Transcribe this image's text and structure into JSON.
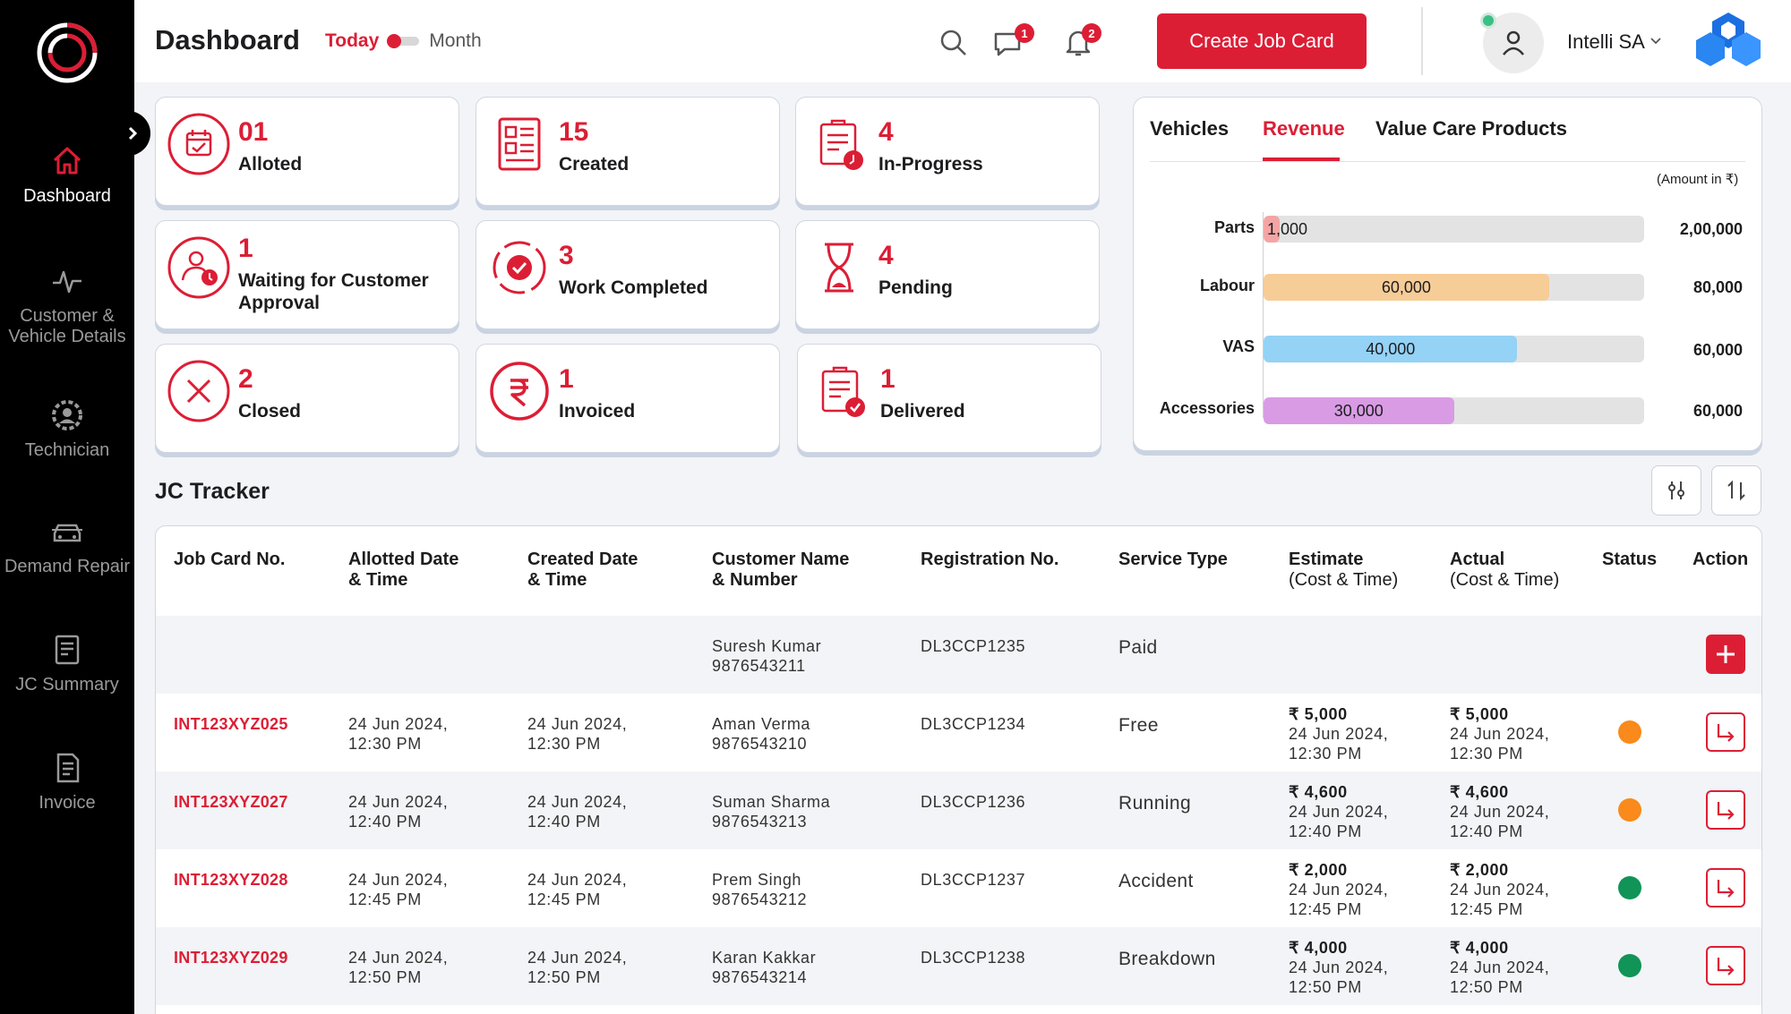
{
  "sidebar": {
    "items": [
      {
        "label": "Dashboard",
        "icon": "home-icon",
        "active": true
      },
      {
        "label": "Customer & Vehicle Details",
        "icon": "pulse-icon",
        "active": false
      },
      {
        "label": "Technician",
        "icon": "gear-person-icon",
        "active": false
      },
      {
        "label": "Demand Repair",
        "icon": "car-icon",
        "active": false
      },
      {
        "label": "JC Summary",
        "icon": "summary-icon",
        "active": false
      },
      {
        "label": "Invoice",
        "icon": "invoice-icon",
        "active": false
      }
    ]
  },
  "header": {
    "title": "Dashboard",
    "toggle_today": "Today",
    "toggle_month": "Month",
    "messages_badge": "1",
    "notifications_badge": "2",
    "create_button": "Create Job Card",
    "user_name": "Intelli SA"
  },
  "cards": [
    {
      "count": "01",
      "label": "Alloted",
      "icon": "calendar-check-icon"
    },
    {
      "count": "15",
      "label": "Created",
      "icon": "document-icon"
    },
    {
      "count": "4",
      "label": "In-Progress",
      "icon": "clipboard-clock-icon"
    },
    {
      "count": "1",
      "label": "Waiting for Customer Approval",
      "icon": "user-clock-icon"
    },
    {
      "count": "3",
      "label": "Work Completed",
      "icon": "gear-check-icon"
    },
    {
      "count": "4",
      "label": "Pending",
      "icon": "hourglass-icon"
    },
    {
      "count": "2",
      "label": "Closed",
      "icon": "close-circle-icon"
    },
    {
      "count": "1",
      "label": "Invoiced",
      "icon": "rupee-icon"
    },
    {
      "count": "1",
      "label": "Delivered",
      "icon": "clipboard-check-icon"
    }
  ],
  "revenue": {
    "tabs": [
      "Vehicles",
      "Revenue",
      "Value Care Products"
    ],
    "active_tab": "Revenue",
    "amount_note": "(Amount in ₹)",
    "rows": [
      {
        "label": "Parts",
        "value": "1,000",
        "max": "2,00,000",
        "fraction": 0.005,
        "color": "#f3a5a5"
      },
      {
        "label": "Labour",
        "value": "60,000",
        "max": "80,000",
        "fraction": 0.75,
        "color": "#f6cc97"
      },
      {
        "label": "VAS",
        "value": "40,000",
        "max": "60,000",
        "fraction": 0.667,
        "color": "#94d2f6"
      },
      {
        "label": "Accessories",
        "value": "30,000",
        "max": "60,000",
        "fraction": 0.5,
        "color": "#d99be4"
      }
    ]
  },
  "tracker": {
    "title": "JC Tracker",
    "columns": [
      {
        "main": "Job Card No.",
        "sub": ""
      },
      {
        "main": "Allotted Date",
        "sub": "& Time"
      },
      {
        "main": "Created Date",
        "sub": "& Time"
      },
      {
        "main": "Customer Name",
        "sub": "& Number"
      },
      {
        "main": "Registration No.",
        "sub": ""
      },
      {
        "main": "Service Type",
        "sub": ""
      },
      {
        "main": "Estimate",
        "sub": "(Cost & Time)"
      },
      {
        "main": "Actual",
        "sub": "(Cost & Time)"
      },
      {
        "main": "Status",
        "sub": ""
      },
      {
        "main": "Action",
        "sub": ""
      }
    ],
    "rows": [
      {
        "jc": "",
        "allot_date": "",
        "allot_time": "",
        "created_date": "",
        "created_time": "",
        "customer": "Suresh Kumar",
        "phone": "9876543211",
        "reg": "DL3CCP1235",
        "service": "Paid",
        "est_cost": "",
        "est_date": "",
        "est_time": "",
        "act_cost": "",
        "act_date": "",
        "act_time": "",
        "status": "",
        "status_color": "",
        "action": "add"
      },
      {
        "jc": "INT123XYZ025",
        "allot_date": "24 Jun 2024,",
        "allot_time": "12:30 PM",
        "created_date": "24 Jun 2024,",
        "created_time": "12:30 PM",
        "customer": "Aman Verma",
        "phone": "9876543210",
        "reg": "DL3CCP1234",
        "service": "Free",
        "est_cost": "₹ 5,000",
        "est_date": "24 Jun 2024,",
        "est_time": "12:30 PM",
        "act_cost": "₹ 5,000",
        "act_date": "24 Jun 2024,",
        "act_time": "12:30 PM",
        "status": "in-progress",
        "status_color": "#f98a1b",
        "action": "open"
      },
      {
        "jc": "INT123XYZ027",
        "allot_date": "24 Jun 2024,",
        "allot_time": "12:40 PM",
        "created_date": "24 Jun 2024,",
        "created_time": "12:40 PM",
        "customer": "Suman Sharma",
        "phone": "9876543213",
        "reg": "DL3CCP1236",
        "service": "Running",
        "est_cost": "₹ 4,600",
        "est_date": "24 Jun 2024,",
        "est_time": "12:40 PM",
        "act_cost": "₹ 4,600",
        "act_date": "24 Jun 2024,",
        "act_time": "12:40 PM",
        "status": "in-progress",
        "status_color": "#f98a1b",
        "action": "open"
      },
      {
        "jc": "INT123XYZ028",
        "allot_date": "24 Jun 2024,",
        "allot_time": "12:45 PM",
        "created_date": "24 Jun 2024,",
        "created_time": "12:45 PM",
        "customer": "Prem Singh",
        "phone": "9876543212",
        "reg": "DL3CCP1237",
        "service": "Accident",
        "est_cost": "₹ 2,000",
        "est_date": "24 Jun 2024,",
        "est_time": "12:45 PM",
        "act_cost": "₹ 2,000",
        "act_date": "24 Jun 2024,",
        "act_time": "12:45 PM",
        "status": "completed",
        "status_color": "#109458",
        "action": "open"
      },
      {
        "jc": "INT123XYZ029",
        "allot_date": "24 Jun 2024,",
        "allot_time": "12:50 PM",
        "created_date": "24 Jun 2024,",
        "created_time": "12:50 PM",
        "customer": "Karan Kakkar",
        "phone": "9876543214",
        "reg": "DL3CCP1238",
        "service": "Breakdown",
        "est_cost": "₹ 4,000",
        "est_date": "24 Jun 2024,",
        "est_time": "12:50 PM",
        "act_cost": "₹ 4,000",
        "act_date": "24 Jun 2024,",
        "act_time": "12:50 PM",
        "status": "completed",
        "status_color": "#109458",
        "action": "open"
      }
    ]
  },
  "colors": {
    "accent": "#dc1e35",
    "sidebar_bg": "#000000",
    "page_bg": "#f3f4f7"
  }
}
